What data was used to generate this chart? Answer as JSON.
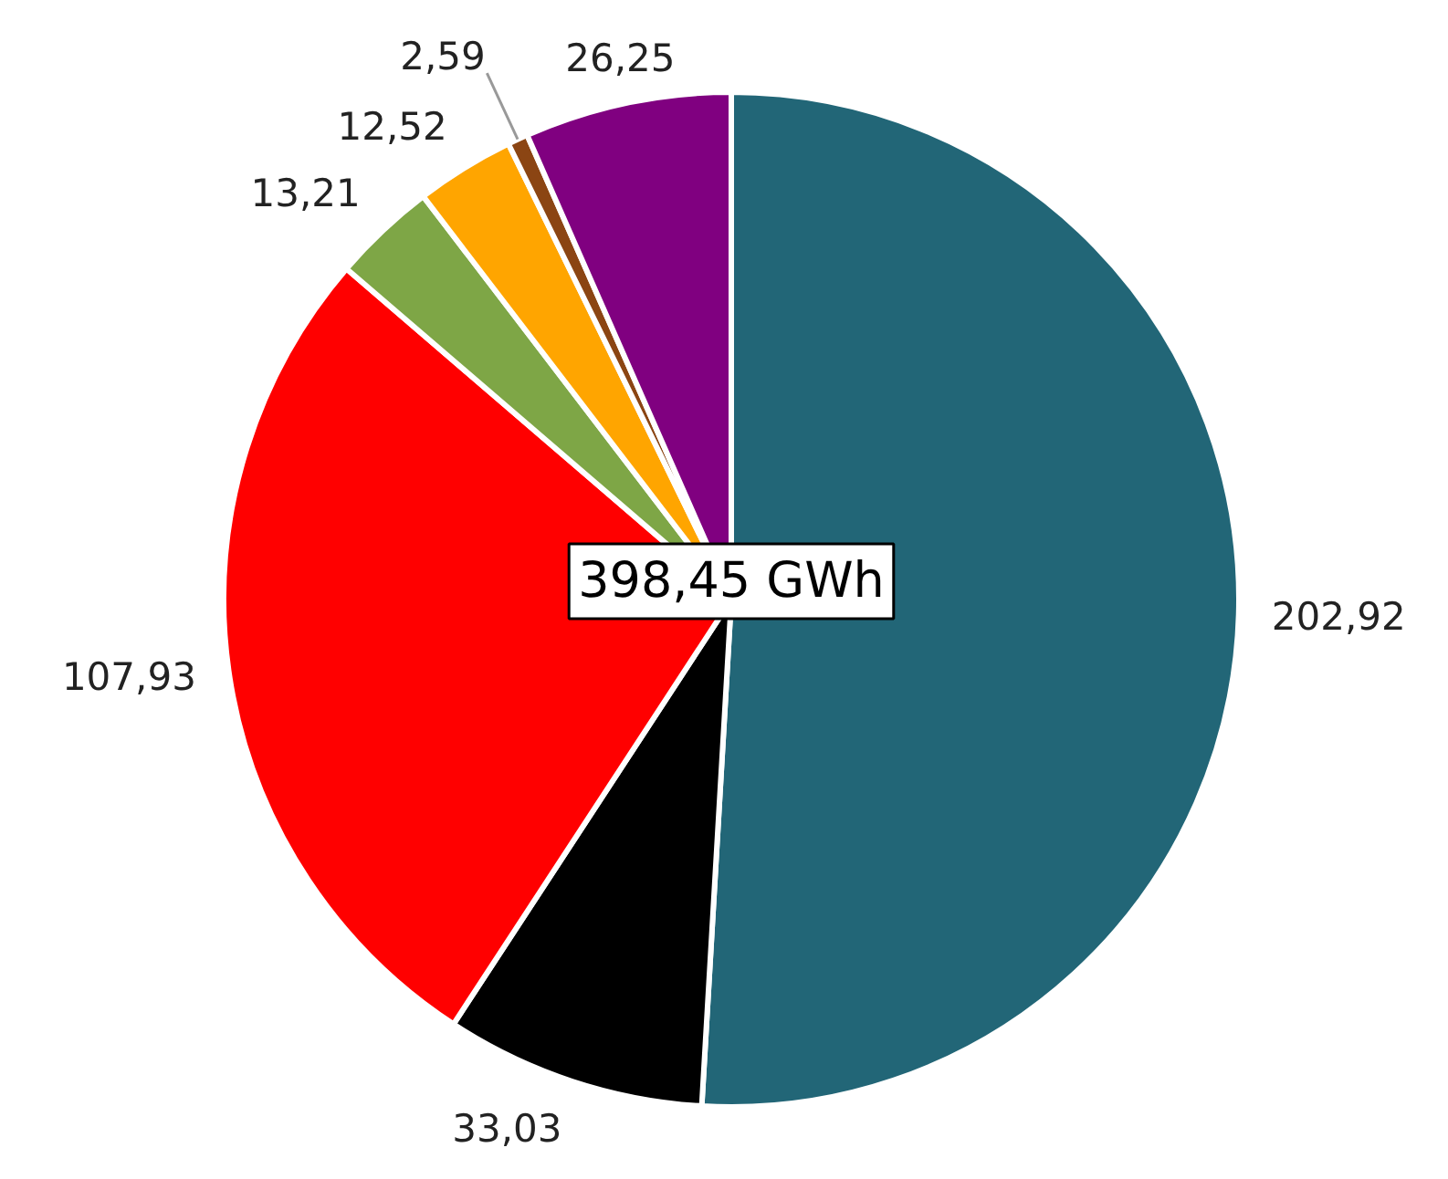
{
  "chart_data": {
    "type": "pie",
    "categories": [
      null,
      null,
      null,
      null,
      null,
      null,
      null
    ],
    "values": [
      202.92,
      33.03,
      107.93,
      13.21,
      12.52,
      2.59,
      26.25
    ],
    "colors": [
      "#226677",
      "#000000",
      "#ff0000",
      "#7ea646",
      "#ffa500",
      "#8b4513",
      "#800080"
    ],
    "value_labels": [
      "202,92",
      "33,03",
      "107,93",
      "13,21",
      "12,52",
      "2,59",
      "26,25"
    ],
    "annotations": [
      "398,45 GWh"
    ]
  }
}
